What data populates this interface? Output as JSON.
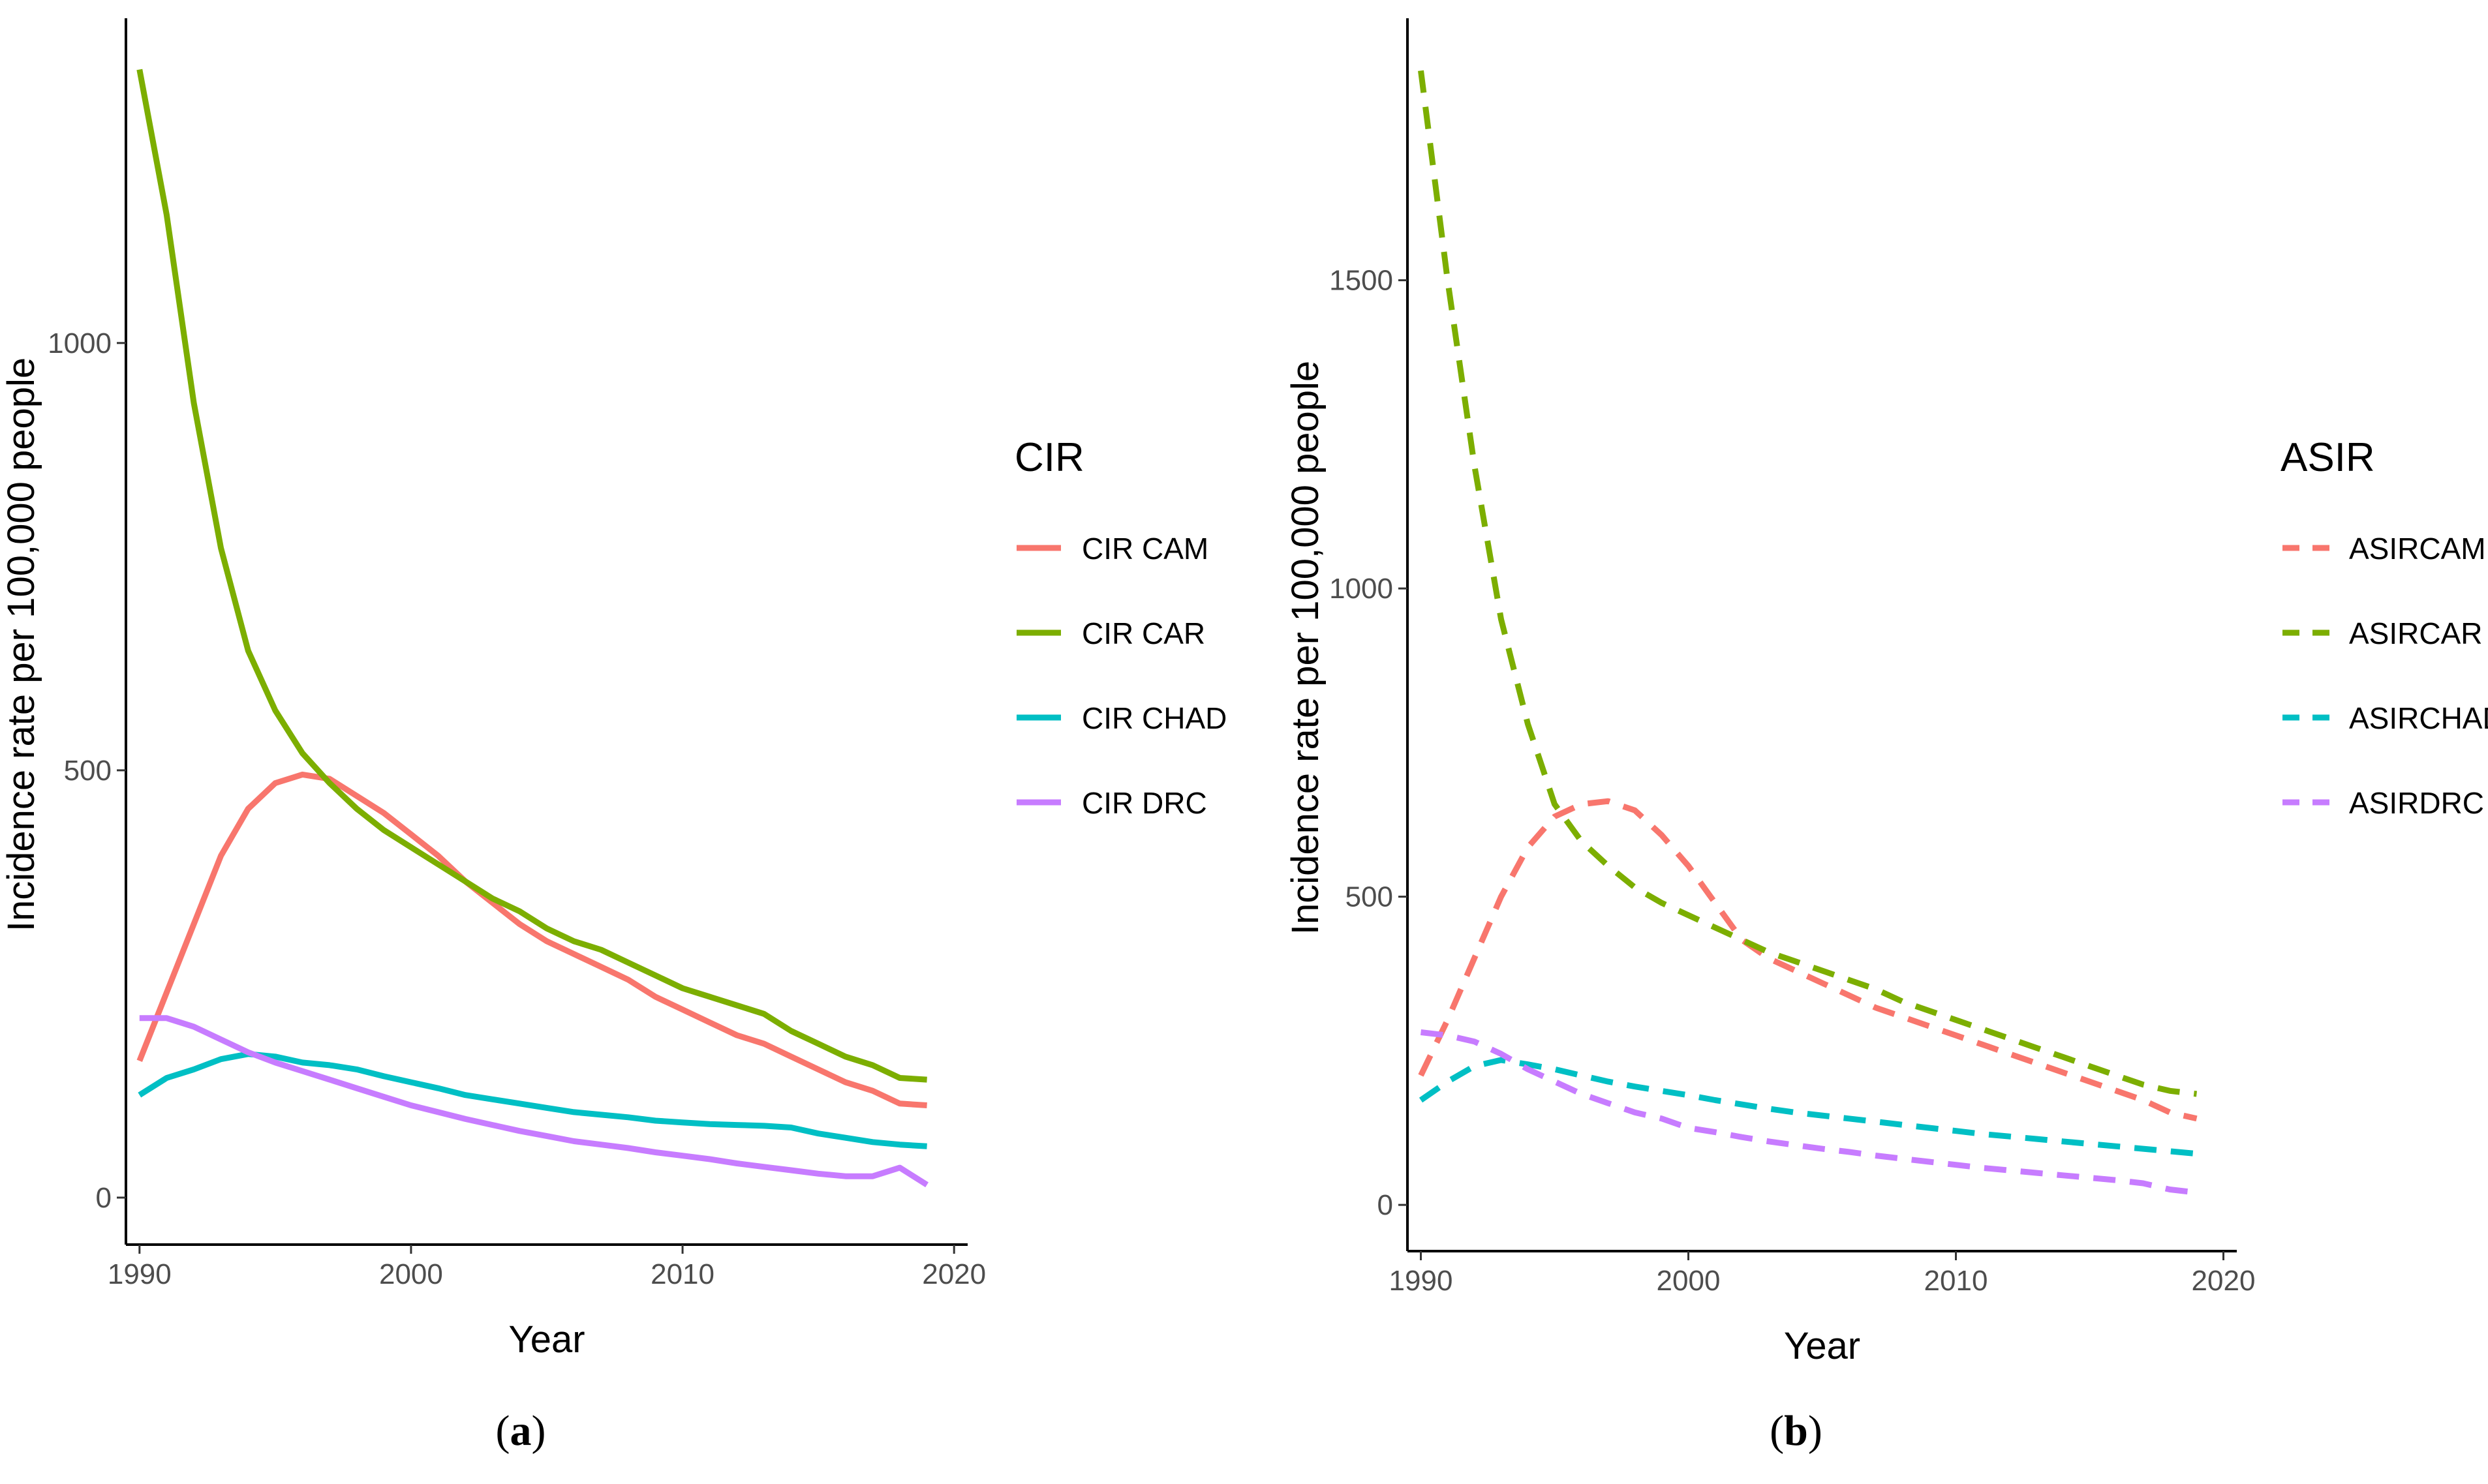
{
  "chart_data": [
    {
      "type": "line",
      "panel_label": "a",
      "title": "",
      "xlabel": "Year",
      "ylabel": "Incidence rate per 100,000 people",
      "xlim": [
        1989.5,
        2020.5
      ],
      "ylim": [
        -55,
        1380
      ],
      "xticks": [
        1990,
        2000,
        2010,
        2020
      ],
      "yticks": [
        0,
        500,
        1000
      ],
      "grid": false,
      "line_style": "solid",
      "legend": {
        "title": "CIR",
        "placement": "right",
        "entries": [
          "CIR CAM",
          "CIR CAR",
          "CIR CHAD",
          "CIR DRC"
        ]
      },
      "x": [
        1990,
        1991,
        1992,
        1993,
        1994,
        1995,
        1996,
        1997,
        1998,
        1999,
        2000,
        2001,
        2002,
        2003,
        2004,
        2005,
        2006,
        2007,
        2008,
        2009,
        2010,
        2011,
        2012,
        2013,
        2014,
        2015,
        2016,
        2017,
        2018,
        2019
      ],
      "series": [
        {
          "name": "CIR CAM",
          "color": "#F8766D",
          "values": [
            160,
            240,
            320,
            400,
            455,
            485,
            495,
            490,
            470,
            450,
            425,
            400,
            370,
            345,
            320,
            300,
            285,
            270,
            255,
            235,
            220,
            205,
            190,
            180,
            165,
            150,
            135,
            125,
            110,
            108
          ]
        },
        {
          "name": "CIR CAR",
          "color": "#7CAE00",
          "values": [
            1320,
            1150,
            930,
            760,
            640,
            570,
            520,
            485,
            455,
            430,
            410,
            390,
            370,
            350,
            335,
            315,
            300,
            290,
            275,
            260,
            245,
            235,
            225,
            215,
            195,
            180,
            165,
            155,
            140,
            138
          ]
        },
        {
          "name": "CIR CHAD",
          "color": "#00BFC4",
          "values": [
            120,
            140,
            150,
            162,
            168,
            165,
            158,
            155,
            150,
            142,
            135,
            128,
            120,
            115,
            110,
            105,
            100,
            97,
            94,
            90,
            88,
            86,
            85,
            84,
            82,
            75,
            70,
            65,
            62,
            60
          ]
        },
        {
          "name": "CIR DRC",
          "color": "#C77CFF",
          "values": [
            210,
            210,
            200,
            185,
            170,
            158,
            148,
            138,
            128,
            118,
            108,
            100,
            92,
            85,
            78,
            72,
            66,
            62,
            58,
            53,
            49,
            45,
            40,
            36,
            32,
            28,
            25,
            25,
            35,
            15
          ]
        }
      ]
    },
    {
      "type": "line",
      "panel_label": "b",
      "title": "",
      "xlabel": "Year",
      "ylabel": "Incidence rate per 100,000 people",
      "xlim": [
        1989.5,
        2020.5
      ],
      "ylim": [
        -75,
        1925
      ],
      "xticks": [
        1990,
        2000,
        2010,
        2020
      ],
      "yticks": [
        0,
        500,
        1000,
        1500
      ],
      "grid": false,
      "line_style": "dashed",
      "legend": {
        "title": "ASIR",
        "placement": "right",
        "entries": [
          "ASIRCAM",
          "ASIRCAR",
          "ASIRCHAD",
          "ASIRDRC"
        ]
      },
      "x": [
        1990,
        1991,
        1992,
        1993,
        1994,
        1995,
        1996,
        1997,
        1998,
        1999,
        2000,
        2001,
        2002,
        2003,
        2004,
        2005,
        2006,
        2007,
        2008,
        2009,
        2010,
        2011,
        2012,
        2013,
        2014,
        2015,
        2016,
        2017,
        2018,
        2019
      ],
      "series": [
        {
          "name": "ASIRCAM",
          "color": "#F8766D",
          "values": [
            210,
            300,
            400,
            500,
            580,
            630,
            650,
            655,
            640,
            600,
            550,
            490,
            430,
            400,
            380,
            360,
            340,
            320,
            305,
            290,
            275,
            260,
            245,
            230,
            215,
            200,
            185,
            170,
            150,
            140
          ]
        },
        {
          "name": "ASIRCAR",
          "color": "#7CAE00",
          "values": [
            1840,
            1500,
            1200,
            950,
            780,
            650,
            590,
            550,
            515,
            490,
            470,
            450,
            430,
            410,
            395,
            380,
            365,
            350,
            330,
            315,
            300,
            285,
            270,
            255,
            240,
            225,
            210,
            195,
            185,
            180
          ]
        },
        {
          "name": "ASIRCHAD",
          "color": "#00BFC4",
          "values": [
            170,
            200,
            225,
            235,
            228,
            220,
            210,
            200,
            192,
            185,
            178,
            170,
            163,
            156,
            150,
            145,
            140,
            135,
            130,
            125,
            120,
            115,
            111,
            107,
            103,
            99,
            95,
            91,
            87,
            83
          ]
        },
        {
          "name": "ASIRDRC",
          "color": "#C77CFF",
          "values": [
            280,
            275,
            265,
            245,
            220,
            200,
            180,
            165,
            150,
            140,
            125,
            118,
            110,
            103,
            97,
            91,
            86,
            80,
            75,
            70,
            65,
            60,
            56,
            52,
            48,
            44,
            40,
            35,
            25,
            20
          ]
        }
      ]
    }
  ]
}
